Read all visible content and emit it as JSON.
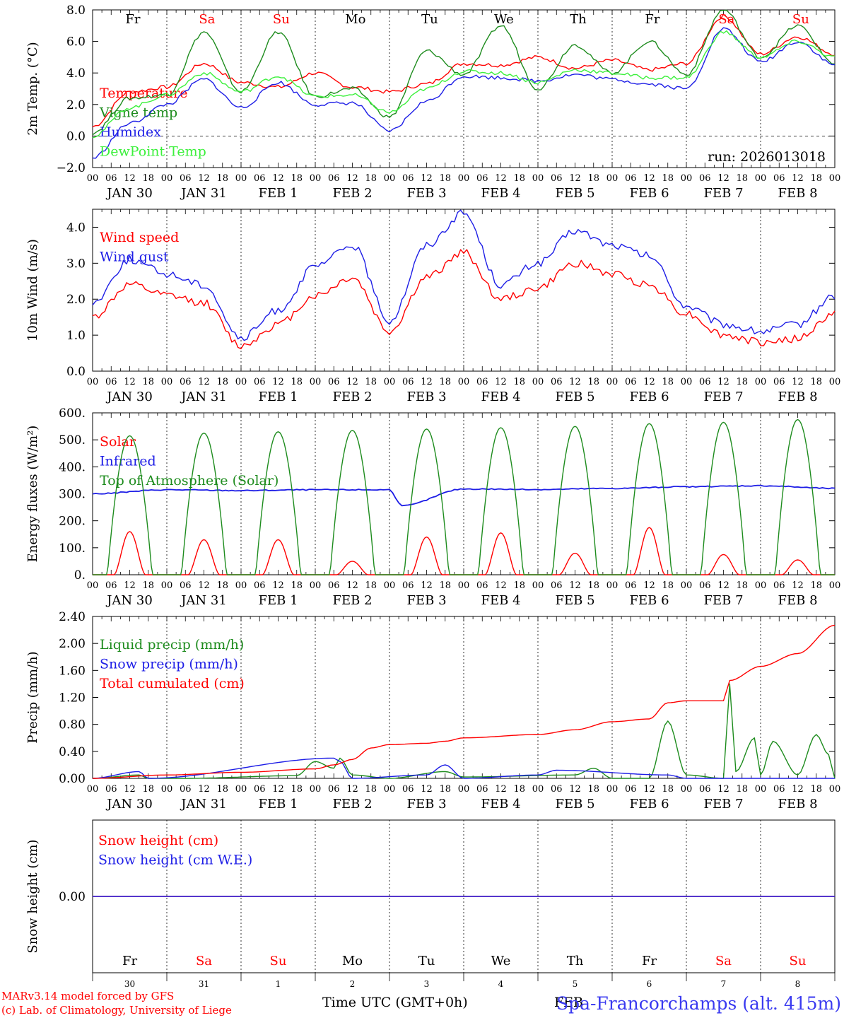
{
  "footer": {
    "model_line1": "MARv3.14 model forced by GFS",
    "model_line2": "(c) Lab. of Climatology, University of Liege",
    "xlabel": "Time UTC (GMT+0h)",
    "location": "Spa-Francorchamps (alt. 415m)",
    "overlap": "FEB"
  },
  "colors": {
    "red": "#ff0000",
    "darkgreen": "#1e8c1e",
    "blue": "#1e1ee6",
    "lightgreen": "#3cf03c",
    "black": "#000000"
  },
  "time_axis": {
    "hour_ticks": [
      "00",
      "06",
      "12",
      "18"
    ],
    "end_tick": "00",
    "date_labels": [
      "JAN 30",
      "JAN 31",
      "FEB  1",
      "FEB  2",
      "FEB  3",
      "FEB  4",
      "FEB  5",
      "FEB  6",
      "FEB  7",
      "FEB  8"
    ],
    "weekdays": [
      "Fr",
      "Sa",
      "Su",
      "Mo",
      "Tu",
      "We",
      "Th",
      "Fr",
      "Sa",
      "Su"
    ],
    "weekday_colors": [
      "#000000",
      "#ff0000",
      "#ff0000",
      "#000000",
      "#000000",
      "#000000",
      "#000000",
      "#000000",
      "#ff0000",
      "#ff0000"
    ],
    "day_numbers": [
      "30",
      "31",
      "1",
      "2",
      "3",
      "4",
      "5",
      "6",
      "7",
      "8"
    ]
  },
  "chart_data": [
    {
      "type": "line",
      "ylabel": "2m Temp. (°C)",
      "ylim": [
        -2,
        8
      ],
      "yticks": [
        "−2.0",
        "0.0",
        "2.0",
        "4.0",
        "6.0",
        "8.0"
      ],
      "ytick_values": [
        -2,
        0,
        2,
        4,
        6,
        8
      ],
      "x_unit": "hours since JAN 30 00 UTC",
      "annotation": "run: 2026013018",
      "series": [
        {
          "name": "Temperature",
          "color": "#ff0000",
          "x": [
            0,
            12,
            24,
            36,
            48,
            60,
            72,
            84,
            96,
            108,
            120,
            132,
            144,
            156,
            168,
            180,
            192,
            204,
            216,
            228,
            240
          ],
          "values": [
            0.6,
            2.8,
            3.1,
            4.6,
            3.4,
            3.1,
            4.0,
            3.1,
            2.8,
            3.3,
            4.6,
            4.5,
            5.0,
            4.3,
            4.8,
            4.2,
            4.6,
            7.6,
            5.2,
            6.3,
            5.2
          ]
        },
        {
          "name": "Vigne temp",
          "color": "#1e8c1e",
          "x": [
            0,
            12,
            24,
            36,
            48,
            60,
            72,
            84,
            96,
            108,
            120,
            132,
            144,
            156,
            168,
            180,
            192,
            204,
            216,
            228,
            240
          ],
          "values": [
            0.2,
            2.4,
            2.6,
            6.6,
            2.8,
            6.6,
            2.5,
            3.0,
            1.2,
            5.4,
            3.9,
            7.0,
            3.0,
            5.8,
            4.0,
            6.0,
            3.9,
            8.0,
            5.0,
            7.0,
            4.6
          ]
        },
        {
          "name": "Humidex",
          "color": "#1e1ee6",
          "x": [
            0,
            12,
            24,
            36,
            48,
            60,
            72,
            84,
            96,
            108,
            120,
            132,
            144,
            156,
            168,
            180,
            192,
            204,
            216,
            228,
            240
          ],
          "values": [
            -1.4,
            0.8,
            2.0,
            3.6,
            1.8,
            3.4,
            2.0,
            2.1,
            0.3,
            2.2,
            3.8,
            3.7,
            3.5,
            3.9,
            3.6,
            3.3,
            3.0,
            6.8,
            4.7,
            6.0,
            4.5
          ]
        },
        {
          "name": "DewPoint Temp",
          "color": "#3cf03c",
          "x": [
            0,
            12,
            24,
            36,
            48,
            60,
            72,
            84,
            96,
            108,
            120,
            132,
            144,
            156,
            168,
            180,
            192,
            204,
            216,
            228,
            240
          ],
          "values": [
            0.0,
            1.8,
            2.6,
            4.0,
            2.8,
            3.8,
            2.5,
            2.6,
            1.5,
            3.0,
            4.1,
            4.0,
            3.4,
            4.2,
            4.0,
            3.7,
            3.7,
            6.6,
            5.0,
            6.0,
            5.0
          ]
        }
      ]
    },
    {
      "type": "line",
      "ylabel": "10m Wind (m/s)",
      "ylim": [
        0,
        4.5
      ],
      "yticks": [
        "0.0",
        "1.0",
        "2.0",
        "3.0",
        "4.0"
      ],
      "ytick_values": [
        0,
        1,
        2,
        3,
        4
      ],
      "series": [
        {
          "name": "Wind speed",
          "color": "#ff0000",
          "x": [
            0,
            12,
            24,
            36,
            48,
            60,
            72,
            84,
            96,
            108,
            120,
            132,
            144,
            156,
            168,
            180,
            192,
            204,
            216,
            228,
            240
          ],
          "values": [
            1.5,
            2.4,
            2.1,
            1.9,
            0.7,
            1.3,
            2.1,
            2.6,
            1.1,
            2.6,
            3.3,
            2.0,
            2.3,
            3.0,
            2.7,
            2.4,
            1.6,
            1.0,
            0.8,
            0.9,
            1.6
          ]
        },
        {
          "name": "Wind gust",
          "color": "#1e1ee6",
          "x": [
            0,
            12,
            24,
            36,
            48,
            60,
            72,
            84,
            96,
            108,
            120,
            132,
            144,
            156,
            168,
            180,
            192,
            204,
            216,
            228,
            240
          ],
          "values": [
            1.9,
            3.1,
            2.7,
            2.4,
            0.9,
            1.7,
            2.9,
            3.5,
            1.4,
            3.5,
            4.4,
            2.4,
            3.0,
            3.9,
            3.5,
            3.2,
            1.8,
            1.3,
            1.1,
            1.3,
            2.1
          ]
        }
      ]
    },
    {
      "type": "line",
      "ylabel": "Energy fluxes (W/m²)",
      "ylim": [
        0,
        600
      ],
      "yticks": [
        "0.",
        "100.",
        "200.",
        "300.",
        "400.",
        "500.",
        "600."
      ],
      "ytick_values": [
        0,
        100,
        200,
        300,
        400,
        500,
        600
      ],
      "series": [
        {
          "name": "Solar",
          "color": "#ff0000",
          "daily_peak_hour": 12,
          "daily_peaks": [
            160,
            130,
            130,
            50,
            140,
            155,
            80,
            175,
            75,
            55
          ]
        },
        {
          "name": "Infrared",
          "color": "#1e1ee6",
          "x": [
            0,
            24,
            48,
            72,
            96,
            100,
            120,
            144,
            168,
            192,
            216,
            240
          ],
          "values": [
            300,
            315,
            312,
            315,
            315,
            255,
            318,
            316,
            320,
            326,
            330,
            320
          ]
        },
        {
          "name": "Top of Atmosphere (Solar)",
          "color": "#1e8c1e",
          "daily_peak_hour": 12,
          "daily_peaks": [
            515,
            525,
            530,
            535,
            540,
            545,
            550,
            560,
            565,
            575
          ]
        }
      ]
    },
    {
      "type": "line",
      "ylabel": "Precip (mm/h)",
      "ylim": [
        0,
        2.4
      ],
      "yticks": [
        "0.00",
        "0.40",
        "0.80",
        "1.20",
        "1.60",
        "2.00",
        "2.40"
      ],
      "ytick_values": [
        0,
        0.4,
        0.8,
        1.2,
        1.6,
        2.0,
        2.4
      ],
      "series": [
        {
          "name": "Liquid precip (mm/h)",
          "color": "#1e8c1e",
          "x": [
            0,
            15,
            18,
            30,
            66,
            72,
            78,
            80,
            84,
            96,
            114,
            120,
            156,
            162,
            168,
            180,
            186,
            192,
            204,
            206,
            208,
            214,
            216,
            220,
            228,
            234,
            238,
            240
          ],
          "values": [
            0,
            0.05,
            0,
            0,
            0.04,
            0.25,
            0.15,
            0.3,
            0.05,
            0,
            0.1,
            0.02,
            0.05,
            0.15,
            0,
            0,
            0.85,
            0.05,
            0,
            1.4,
            0.1,
            0.6,
            0.05,
            0.55,
            0.05,
            0.65,
            0.35,
            0
          ]
        },
        {
          "name": "Snow precip (mm/h)",
          "color": "#1e1ee6",
          "x": [
            0,
            15,
            18,
            78,
            80,
            84,
            108,
            114,
            120,
            144,
            150,
            186,
            192,
            240
          ],
          "values": [
            0,
            0.1,
            0,
            0.3,
            0.25,
            0,
            0.05,
            0.2,
            0,
            0.05,
            0.12,
            0.05,
            0,
            0
          ]
        },
        {
          "name": "Total cumulated (cm)",
          "color": "#ff0000",
          "x": [
            0,
            24,
            48,
            72,
            78,
            84,
            90,
            96,
            108,
            114,
            120,
            144,
            156,
            168,
            180,
            186,
            192,
            204,
            206,
            216,
            228,
            240
          ],
          "values": [
            0,
            0.05,
            0.09,
            0.14,
            0.2,
            0.28,
            0.45,
            0.5,
            0.52,
            0.55,
            0.6,
            0.65,
            0.72,
            0.84,
            0.88,
            1.12,
            1.15,
            1.15,
            1.45,
            1.66,
            1.85,
            2.27
          ]
        }
      ]
    },
    {
      "type": "line",
      "ylabel": "Snow height (cm)",
      "ylim": [
        -1,
        1
      ],
      "yticks": [
        "0.00"
      ],
      "ytick_values": [
        0
      ],
      "series": [
        {
          "name": "Snow height (cm)",
          "color": "#ff0000",
          "x": [
            0,
            240
          ],
          "values": [
            0,
            0
          ]
        },
        {
          "name": "Snow height (cm W.E.)",
          "color": "#1e1ee6",
          "x": [
            0,
            240
          ],
          "values": [
            0,
            0
          ]
        }
      ]
    }
  ]
}
